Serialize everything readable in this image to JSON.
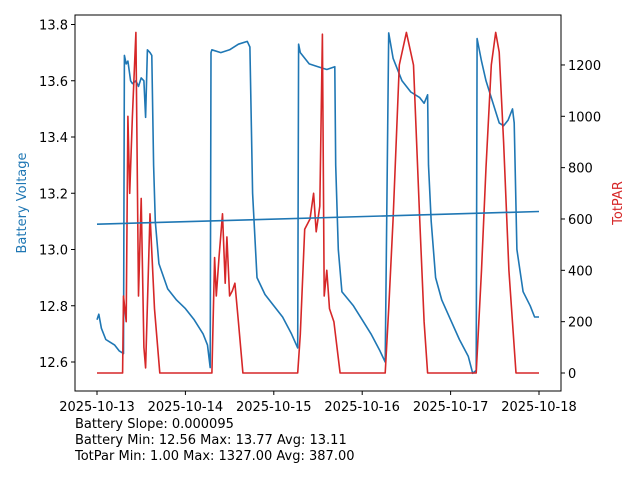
{
  "chart_data": {
    "type": "line",
    "xlabel": "",
    "ylabel": "Battery Voltage",
    "y2label": "TotPAR",
    "x_unit": "days since 2025-10-13",
    "xlim": [
      -0.25,
      5.25
    ],
    "ylim": [
      12.5,
      13.83
    ],
    "y2lim": [
      -60,
      1400
    ],
    "xticks": [
      {
        "v": 0,
        "label": "2025-10-13"
      },
      {
        "v": 1,
        "label": "2025-10-14"
      },
      {
        "v": 2,
        "label": "2025-10-15"
      },
      {
        "v": 3,
        "label": "2025-10-16"
      },
      {
        "v": 4,
        "label": "2025-10-17"
      },
      {
        "v": 5,
        "label": "2025-10-18"
      }
    ],
    "yticks": [
      {
        "v": 12.6,
        "label": "12.6"
      },
      {
        "v": 12.8,
        "label": "12.8"
      },
      {
        "v": 13.0,
        "label": "13.0"
      },
      {
        "v": 13.2,
        "label": "13.2"
      },
      {
        "v": 13.4,
        "label": "13.4"
      },
      {
        "v": 13.6,
        "label": "13.6"
      },
      {
        "v": 13.8,
        "label": "13.8"
      }
    ],
    "y2ticks": [
      {
        "v": 0,
        "label": "0"
      },
      {
        "v": 200,
        "label": "200"
      },
      {
        "v": 400,
        "label": "400"
      },
      {
        "v": 600,
        "label": "600"
      },
      {
        "v": 800,
        "label": "800"
      },
      {
        "v": 1000,
        "label": "1000"
      },
      {
        "v": 1200,
        "label": "1200"
      }
    ],
    "colors": {
      "battery": "#1f77b4",
      "par": "#d62728"
    },
    "series": [
      {
        "name": "Battery Voltage",
        "axis": "left",
        "x": [
          0,
          0.02,
          0.05,
          0.1,
          0.15,
          0.2,
          0.25,
          0.3,
          0.31,
          0.33,
          0.35,
          0.38,
          0.4,
          0.44,
          0.47,
          0.5,
          0.53,
          0.55,
          0.57,
          0.6,
          0.62,
          0.64,
          0.66,
          0.7,
          0.8,
          0.9,
          1.0,
          1.1,
          1.2,
          1.25,
          1.28,
          1.29,
          1.3,
          1.4,
          1.5,
          1.6,
          1.7,
          1.73,
          1.76,
          1.81,
          1.9,
          2.0,
          2.1,
          2.2,
          2.27,
          2.28,
          2.3,
          2.4,
          2.5,
          2.6,
          2.69,
          2.7,
          2.73,
          2.77,
          2.9,
          3.0,
          3.1,
          3.2,
          3.26,
          3.3,
          3.35,
          3.45,
          3.55,
          3.65,
          3.7,
          3.74,
          3.75,
          3.78,
          3.83,
          3.9,
          4.0,
          4.1,
          4.2,
          4.25,
          4.29,
          4.3,
          4.35,
          4.4,
          4.5,
          4.55,
          4.6,
          4.65,
          4.7,
          4.72,
          4.75,
          4.82,
          4.9,
          4.95,
          5.0
        ],
        "y": [
          12.75,
          12.77,
          12.72,
          12.68,
          12.67,
          12.66,
          12.64,
          12.63,
          13.69,
          13.66,
          13.67,
          13.6,
          13.59,
          13.6,
          13.58,
          13.61,
          13.6,
          13.47,
          13.71,
          13.7,
          13.69,
          13.3,
          13.1,
          12.95,
          12.86,
          12.82,
          12.79,
          12.75,
          12.7,
          12.66,
          12.58,
          13.7,
          13.71,
          13.7,
          13.71,
          13.73,
          13.74,
          13.72,
          13.2,
          12.9,
          12.84,
          12.8,
          12.76,
          12.7,
          12.65,
          13.73,
          13.7,
          13.66,
          13.65,
          13.64,
          13.65,
          13.3,
          13.0,
          12.85,
          12.8,
          12.75,
          12.7,
          12.64,
          12.6,
          13.77,
          13.68,
          13.6,
          13.56,
          13.54,
          13.52,
          13.55,
          13.3,
          13.1,
          12.9,
          12.82,
          12.75,
          12.68,
          12.62,
          12.56,
          12.57,
          13.75,
          13.67,
          13.6,
          13.5,
          13.45,
          13.44,
          13.46,
          13.5,
          13.45,
          13.0,
          12.85,
          12.8,
          12.76,
          12.76
        ]
      },
      {
        "name": "Battery trend",
        "axis": "left",
        "x": [
          0,
          5.0
        ],
        "y": [
          13.09,
          13.135
        ]
      },
      {
        "name": "TotPAR",
        "axis": "right",
        "x": [
          0,
          0.15,
          0.29,
          0.3,
          0.33,
          0.35,
          0.37,
          0.4,
          0.44,
          0.47,
          0.5,
          0.53,
          0.55,
          0.6,
          0.65,
          0.71,
          1.0,
          1.28,
          1.3,
          1.33,
          1.35,
          1.38,
          1.42,
          1.45,
          1.47,
          1.5,
          1.53,
          1.56,
          1.6,
          1.65,
          2.0,
          2.27,
          2.3,
          2.35,
          2.41,
          2.45,
          2.48,
          2.52,
          2.55,
          2.57,
          2.6,
          2.63,
          2.68,
          2.75,
          3.0,
          3.26,
          3.3,
          3.35,
          3.42,
          3.5,
          3.58,
          3.65,
          3.7,
          3.74,
          4.0,
          4.29,
          4.35,
          4.4,
          4.46,
          4.51,
          4.55,
          4.6,
          4.66,
          4.74,
          5.0
        ],
        "y": [
          0,
          0,
          0,
          300,
          200,
          1000,
          700,
          1000,
          1327,
          300,
          680,
          100,
          20,
          620,
          250,
          0,
          0,
          0,
          0,
          450,
          300,
          450,
          620,
          350,
          530,
          300,
          320,
          350,
          200,
          0,
          0,
          0,
          150,
          560,
          600,
          700,
          550,
          650,
          1320,
          300,
          400,
          250,
          200,
          0,
          0,
          0,
          250,
          600,
          1200,
          1327,
          1200,
          600,
          200,
          0,
          0,
          0,
          400,
          800,
          1200,
          1327,
          1250,
          900,
          400,
          0,
          0
        ]
      }
    ]
  },
  "stats": {
    "line1": "Battery Slope: 0.000095",
    "line2": "Battery Min: 12.56 Max: 13.77 Avg: 13.11",
    "line3": "TotPar Min: 1.00 Max: 1327.00 Avg: 387.00"
  }
}
